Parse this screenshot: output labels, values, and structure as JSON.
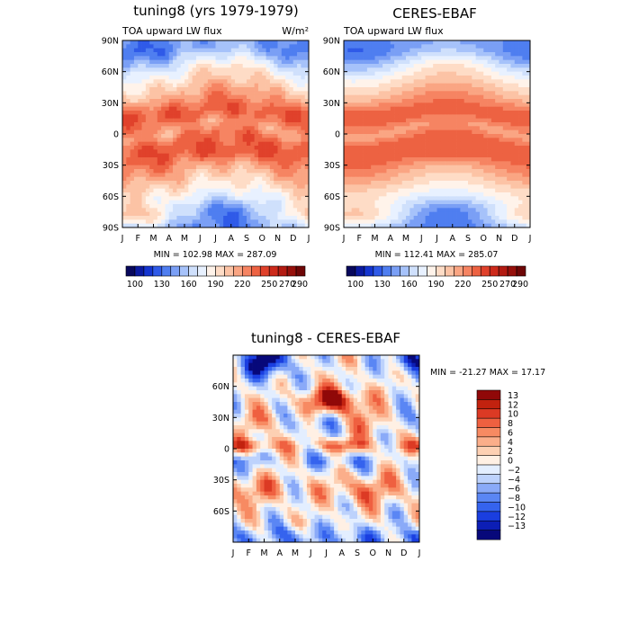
{
  "chart_data": [
    {
      "type": "heatmap",
      "title": "tuning8 (yrs 1979-1979)",
      "left_label": "TOA upward LW flux",
      "units": "W/m²",
      "stats": "MIN = 102.98 MAX = 287.09",
      "x_ticks": [
        "J",
        "F",
        "M",
        "A",
        "M",
        "J",
        "J",
        "A",
        "S",
        "O",
        "N",
        "D",
        "J"
      ],
      "y_ticks": [
        "90N",
        "60N",
        "30N",
        "0",
        "30S",
        "60S",
        "90S"
      ],
      "y_tick_values": [
        90,
        60,
        30,
        0,
        -30,
        -60,
        -90
      ],
      "ylim": [
        -90,
        90
      ],
      "contour_levels": [
        100,
        110,
        120,
        130,
        140,
        150,
        160,
        170,
        180,
        190,
        200,
        210,
        220,
        230,
        240,
        250,
        260,
        270,
        280,
        290
      ],
      "colorbar_labels": [
        "100",
        "130",
        "160",
        "190",
        "220",
        "250",
        "270",
        "290"
      ],
      "min": 102.98,
      "max": 287.09,
      "variant": "model"
    },
    {
      "type": "heatmap",
      "title": "CERES-EBAF",
      "left_label": "TOA upward LW flux",
      "stats": "MIN = 112.41 MAX = 285.07",
      "x_ticks": [
        "J",
        "F",
        "M",
        "A",
        "M",
        "J",
        "J",
        "A",
        "S",
        "O",
        "N",
        "D",
        "J"
      ],
      "y_ticks": [
        "90N",
        "60N",
        "30N",
        "0",
        "30S",
        "60S",
        "90S"
      ],
      "y_tick_values": [
        90,
        60,
        30,
        0,
        -30,
        -60,
        -90
      ],
      "ylim": [
        -90,
        90
      ],
      "contour_levels": [
        100,
        110,
        120,
        130,
        140,
        150,
        160,
        170,
        180,
        190,
        200,
        210,
        220,
        230,
        240,
        250,
        260,
        270,
        280,
        290
      ],
      "colorbar_labels": [
        "100",
        "130",
        "160",
        "190",
        "220",
        "250",
        "270",
        "290"
      ],
      "min": 112.41,
      "max": 285.07,
      "variant": "obs"
    },
    {
      "type": "heatmap",
      "title": "tuning8 - CERES-EBAF",
      "stats": "MIN = -21.27 MAX =  17.17",
      "x_ticks": [
        "J",
        "F",
        "M",
        "A",
        "M",
        "J",
        "J",
        "A",
        "S",
        "O",
        "N",
        "D",
        "J"
      ],
      "y_ticks": [
        "60N",
        "30N",
        "0",
        "30S",
        "60S"
      ],
      "y_tick_values": [
        60,
        30,
        0,
        -30,
        -60
      ],
      "ylim": [
        -90,
        90
      ],
      "contour_levels": [
        -13,
        -12,
        -10,
        -8,
        -6,
        -4,
        -2,
        0,
        2,
        4,
        6,
        8,
        10,
        12,
        13
      ],
      "colorbar_labels": [
        "13",
        "12",
        "10",
        "8",
        "6",
        "4",
        "2",
        "0",
        "−2",
        "−4",
        "−6",
        "−8",
        "−10",
        "−12",
        "−13"
      ],
      "min": -21.27,
      "max": 17.17
    }
  ],
  "colors": {
    "flux_scale": [
      "#08085c",
      "#0b1aa0",
      "#1435d0",
      "#2f5ae8",
      "#4f7ef0",
      "#7a9ff5",
      "#a6c2fa",
      "#cfe0fc",
      "#e8f1ff",
      "#fff3ea",
      "#fedcc6",
      "#fcc3a5",
      "#faa583",
      "#f68462",
      "#ed6242",
      "#e0412b",
      "#cd2a1b",
      "#b31b12",
      "#96100b",
      "#6e0606"
    ],
    "diff_scale": [
      "#07087a",
      "#0c1eb5",
      "#1a3ee0",
      "#3563ee",
      "#5a86f4",
      "#8aaaf8",
      "#bdd2fc",
      "#e3eeff",
      "#fff0e4",
      "#fdd0b3",
      "#fbae8a",
      "#f78a62",
      "#ef6040",
      "#dc3a24",
      "#c2220f",
      "#900808"
    ]
  }
}
